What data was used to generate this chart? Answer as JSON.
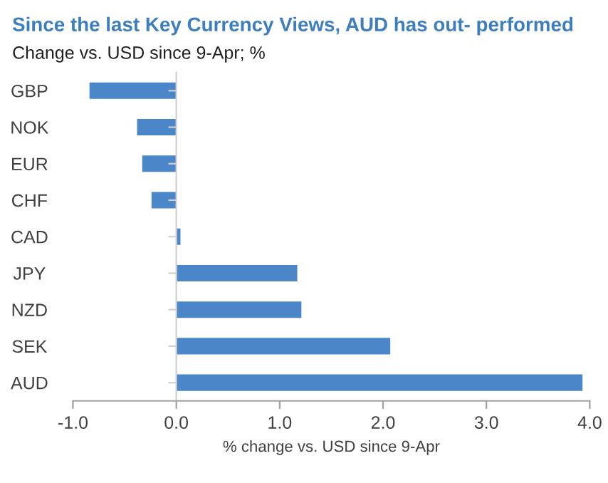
{
  "chart_data": {
    "type": "bar",
    "orientation": "horizontal",
    "title": "Since the last Key Currency Views, AUD has out- performed",
    "subtitle": "Change vs. USD since 9-Apr; %",
    "xlabel": "% change vs. USD since 9-Apr",
    "categories": [
      "GBP",
      "NOK",
      "EUR",
      "CHF",
      "CAD",
      "JPY",
      "NZD",
      "SEK",
      "AUD"
    ],
    "values": [
      -0.84,
      -0.38,
      -0.33,
      -0.24,
      0.04,
      1.17,
      1.21,
      2.07,
      3.93
    ],
    "color": "#4a86c8",
    "xlim": [
      -1,
      4
    ],
    "xticks": [
      {
        "value": -1,
        "label": "-1.0"
      },
      {
        "value": 0,
        "label": "0.0"
      },
      {
        "value": 1,
        "label": "1.0"
      },
      {
        "value": 2,
        "label": "2.0"
      },
      {
        "value": 3,
        "label": "3.0"
      },
      {
        "value": 4,
        "label": "4.0"
      }
    ],
    "legend": false
  }
}
